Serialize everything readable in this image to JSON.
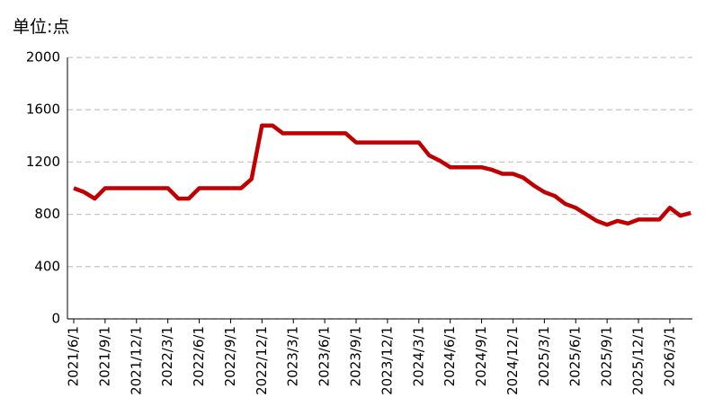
{
  "chart_data": {
    "type": "line",
    "title": "单位:点",
    "categories": [
      "2021/6/1",
      null,
      null,
      "2021/9/1",
      null,
      null,
      "2021/12/1",
      null,
      null,
      "2022/3/1",
      null,
      null,
      "2022/6/1",
      null,
      null,
      "2022/9/1",
      null,
      null,
      "2022/12/1",
      null,
      null,
      "2023/3/1",
      null,
      null,
      "2023/6/1",
      null,
      null,
      "2023/9/1",
      null,
      null,
      "2023/12/1",
      null,
      null,
      "2024/3/1",
      null,
      null,
      "2024/6/1",
      null,
      null,
      "2024/9/1",
      null,
      null,
      "2024/12/1",
      null,
      null,
      "2025/3/1",
      null,
      null,
      "2025/6/1",
      null,
      null,
      "2025/9/1",
      null,
      null,
      "2025/12/1",
      null,
      null,
      "2026/3/1",
      null,
      null
    ],
    "values": [
      1000,
      970,
      920,
      1000,
      1000,
      1000,
      1000,
      1000,
      1000,
      1000,
      920,
      920,
      1000,
      1000,
      1000,
      1000,
      1000,
      1070,
      1480,
      1480,
      1420,
      1420,
      1420,
      1420,
      1420,
      1420,
      1420,
      1350,
      1350,
      1350,
      1350,
      1350,
      1350,
      1350,
      1250,
      1210,
      1160,
      1160,
      1160,
      1160,
      1140,
      1110,
      1110,
      1080,
      1020,
      970,
      940,
      880,
      850,
      800,
      750,
      720,
      750,
      730,
      760,
      760,
      760,
      850,
      790,
      810
    ],
    "color": "#c00000",
    "ylim": [
      0,
      2000
    ],
    "yticks": [
      0,
      400,
      800,
      1200,
      1600,
      2000
    ],
    "grid": true
  }
}
